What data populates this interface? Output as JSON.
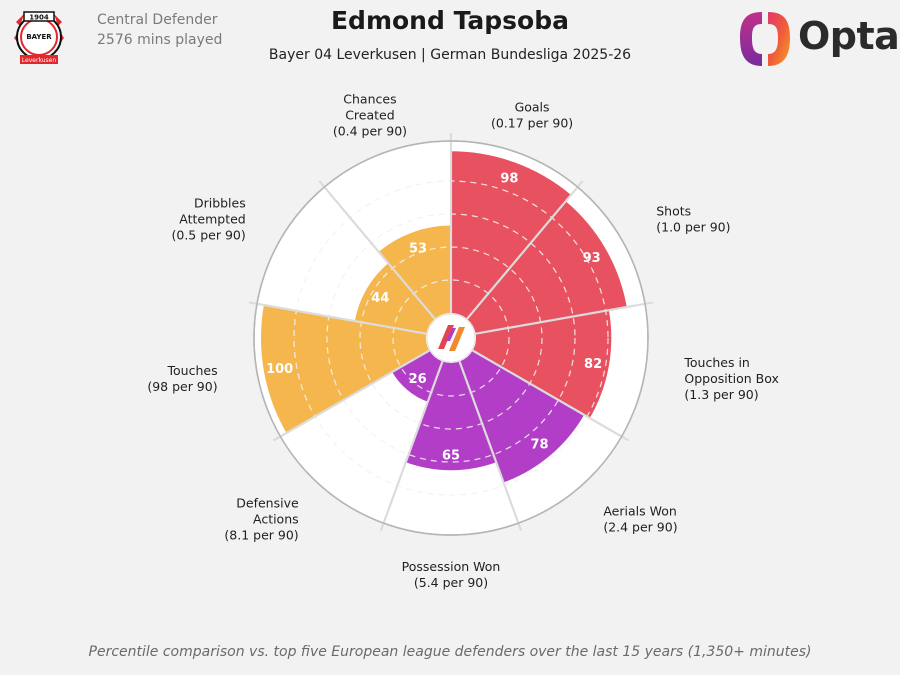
{
  "header": {
    "position": "Central Defender",
    "minutes": "2576 mins played",
    "player": "Edmond Tapsoba",
    "subtitle": "Bayer 04 Leverkusen | German Bundesliga 2025-26",
    "brand": "Opta",
    "club_crest_text": [
      "1904",
      "BAYER",
      "Leverkusen"
    ]
  },
  "footnote": "Percentile comparison vs. top five European league defenders over the last 15 years (1,350+ minutes)",
  "colors": {
    "attack": "#e8515f",
    "defence": "#b23ec8",
    "possession": "#f5b74d",
    "ring": "#d4d4d4",
    "background": "#f3f2f2"
  },
  "chart_data": {
    "type": "pie",
    "scale": [
      0,
      100
    ],
    "rings": [
      20,
      40,
      60,
      80,
      100
    ],
    "segments": [
      {
        "metric": "Goals",
        "per90": "(0.17 per 90)",
        "percentile": 98,
        "group": "attack"
      },
      {
        "metric": "Shots",
        "per90": "(1.0 per 90)",
        "percentile": 93,
        "group": "attack"
      },
      {
        "metric": "Touches in Opposition Box",
        "per90": "(1.3 per 90)",
        "percentile": 82,
        "group": "attack"
      },
      {
        "metric": "Aerials Won",
        "per90": "(2.4 per 90)",
        "percentile": 78,
        "group": "defence"
      },
      {
        "metric": "Possession Won",
        "per90": "(5.4 per 90)",
        "percentile": 65,
        "group": "defence"
      },
      {
        "metric": "Defensive Actions",
        "per90": "(8.1 per 90)",
        "percentile": 26,
        "group": "defence"
      },
      {
        "metric": "Touches",
        "per90": "(98 per 90)",
        "percentile": 100,
        "group": "possession"
      },
      {
        "metric": "Dribbles Attempted",
        "per90": "(0.5 per 90)",
        "percentile": 44,
        "group": "possession"
      },
      {
        "metric": "Chances Created",
        "per90": "(0.4 per 90)",
        "percentile": 53,
        "group": "possession"
      }
    ]
  }
}
